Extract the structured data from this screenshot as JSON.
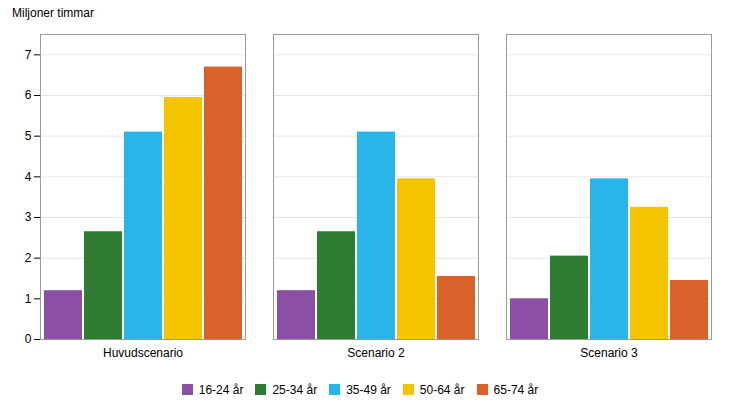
{
  "chart_data": {
    "type": "bar",
    "ylabel": "Miljoner timmar",
    "categories": [
      "Huvudscenario",
      "Scenario 2",
      "Scenario 3"
    ],
    "series": [
      {
        "name": "16-24 år",
        "color": "#8B50A4",
        "values": [
          1.2,
          1.2,
          1.0
        ]
      },
      {
        "name": "25-34 år",
        "color": "#2E7D32",
        "values": [
          2.65,
          2.65,
          2.05
        ]
      },
      {
        "name": "35-49 år",
        "color": "#29B5E8",
        "values": [
          5.1,
          5.1,
          3.95
        ]
      },
      {
        "name": "50-64 år",
        "color": "#F5C400",
        "values": [
          5.95,
          3.95,
          3.25
        ]
      },
      {
        "name": "65-74 år",
        "color": "#D9622A",
        "values": [
          6.7,
          1.55,
          1.45
        ]
      }
    ],
    "ylim": [
      0,
      7.5
    ],
    "yticks": [
      0,
      1,
      2,
      3,
      4,
      5,
      6,
      7
    ],
    "grid": true,
    "legend": "bottom"
  }
}
